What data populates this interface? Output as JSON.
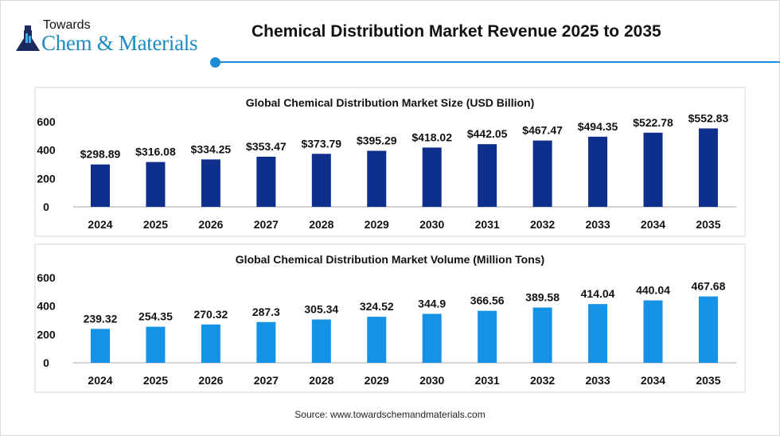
{
  "header": {
    "logo_top": "Towards",
    "logo_main": "Chem & Materials",
    "title": "Chemical Distribution Market Revenue 2025 to 2035"
  },
  "source": "Source: www.towardschemandmaterials.com",
  "colors": {
    "size_bar": "#0e2f8c",
    "volume_bar": "#1592e6",
    "accent": "#1b8bd6"
  },
  "chart_data": [
    {
      "type": "bar",
      "title": "Global Chemical Distribution Market Size (USD Billion)",
      "categories": [
        "2024",
        "2025",
        "2026",
        "2027",
        "2028",
        "2029",
        "2030",
        "2031",
        "2032",
        "2033",
        "2034",
        "2035"
      ],
      "values": [
        298.89,
        316.08,
        334.25,
        353.47,
        373.79,
        395.29,
        418.02,
        442.05,
        467.47,
        494.35,
        522.78,
        552.83
      ],
      "labels": [
        "$298.89",
        "$316.08",
        "$334.25",
        "$353.47",
        "$373.79",
        "$395.29",
        "$418.02",
        "$442.05",
        "$467.47",
        "$494.35",
        "$522.78",
        "$552.83"
      ],
      "yticks": [
        "0",
        "200",
        "400",
        "600"
      ],
      "ylim": [
        0,
        600
      ],
      "grid": false,
      "color": "#0e2f8c"
    },
    {
      "type": "bar",
      "title": "Global Chemical Distribution Market Volume (Million Tons)",
      "categories": [
        "2024",
        "2025",
        "2026",
        "2027",
        "2028",
        "2029",
        "2030",
        "2031",
        "2032",
        "2033",
        "2034",
        "2035"
      ],
      "values": [
        239.32,
        254.35,
        270.32,
        287.3,
        305.34,
        324.52,
        344.9,
        366.56,
        389.58,
        414.04,
        440.04,
        467.68
      ],
      "labels": [
        "239.32",
        "254.35",
        "270.32",
        "287.3",
        "305.34",
        "324.52",
        "344.9",
        "366.56",
        "389.58",
        "414.04",
        "440.04",
        "467.68"
      ],
      "yticks": [
        "0",
        "200",
        "400",
        "600"
      ],
      "ylim": [
        0,
        600
      ],
      "grid": false,
      "color": "#1592e6"
    }
  ]
}
